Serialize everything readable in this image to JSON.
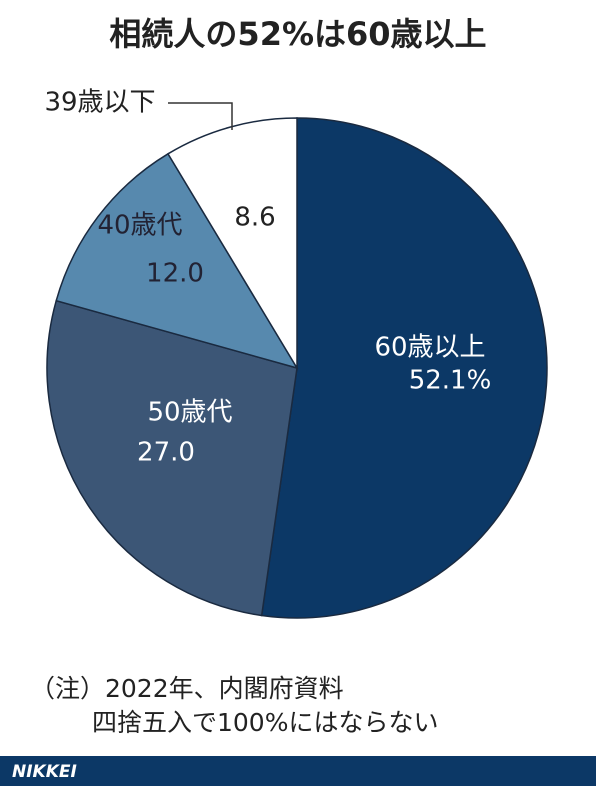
{
  "chart_data": {
    "type": "pie",
    "title": "相続人の52%は60歳以上",
    "categories": [
      "60歳以上",
      "50歳代",
      "40歳代",
      "39歳以下"
    ],
    "values": [
      52.1,
      27.0,
      12.0,
      8.6
    ],
    "value_labels": [
      "52.1%",
      "27.0",
      "12.0",
      "8.6"
    ],
    "colors": [
      "#0c3866",
      "#3c5676",
      "#5789ae",
      "#ffffff"
    ],
    "notes": [
      "（注）2022年、内閣府資料",
      "四捨五入で100%にはならない"
    ],
    "source": "NIKKEI"
  }
}
